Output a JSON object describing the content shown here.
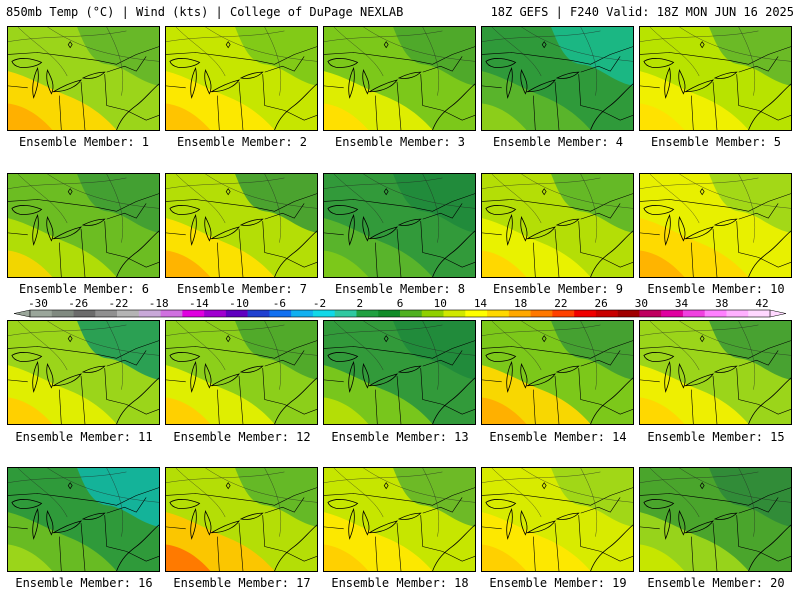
{
  "header": {
    "left": "850mb Temp (°C) | Wind (kts) | College of DuPage NEXLAB",
    "right": "18Z GEFS | F240 Valid: 18Z MON JUN 16 2025"
  },
  "members": [
    {
      "label": "Ensemble Member: 1",
      "base": "#9bd51a",
      "warm": "#ffd800",
      "hot": "#ffb000",
      "cool": "#63b52a"
    },
    {
      "label": "Ensemble Member: 2",
      "base": "#c6e600",
      "warm": "#ffe800",
      "hot": "#ffc400",
      "cool": "#7ac61a"
    },
    {
      "label": "Ensemble Member: 3",
      "base": "#7cc81a",
      "warm": "#e4ef00",
      "hot": "#ffe000",
      "cool": "#4aa52c"
    },
    {
      "label": "Ensemble Member: 4",
      "base": "#2f9a3a",
      "warm": "#5cb52a",
      "hot": "#8cce1a",
      "cool": "#1aba8c"
    },
    {
      "label": "Ensemble Member: 5",
      "base": "#b8e300",
      "warm": "#f2f000",
      "hot": "#ffe200",
      "cool": "#63b52a"
    },
    {
      "label": "Ensemble Member: 6",
      "base": "#6cbd22",
      "warm": "#b4de06",
      "hot": "#f2d600",
      "cool": "#3f9c34"
    },
    {
      "label": "Ensemble Member: 7",
      "base": "#b4de06",
      "warm": "#ffe000",
      "hot": "#ffb400",
      "cool": "#3f9c34"
    },
    {
      "label": "Ensemble Member: 8",
      "base": "#329a3a",
      "warm": "#5cb52a",
      "hot": "#7cc81a",
      "cool": "#1f8a3c"
    },
    {
      "label": "Ensemble Member: 9",
      "base": "#b4de06",
      "warm": "#ecf200",
      "hot": "#ffd800",
      "cool": "#5cb52a"
    },
    {
      "label": "Ensemble Member: 10",
      "base": "#e8f000",
      "warm": "#ffd800",
      "hot": "#ffb400",
      "cool": "#9bd51a"
    },
    {
      "label": "Ensemble Member: 11",
      "base": "#9bd51a",
      "warm": "#e4ef00",
      "hot": "#ffd000",
      "cool": "#1f9a5a"
    },
    {
      "label": "Ensemble Member: 12",
      "base": "#8ccf1a",
      "warm": "#e4ef00",
      "hot": "#ffd000",
      "cool": "#4aa52c"
    },
    {
      "label": "Ensemble Member: 13",
      "base": "#329a3a",
      "warm": "#7cc81a",
      "hot": "#b4de06",
      "cool": "#1f8a3c"
    },
    {
      "label": "Ensemble Member: 14",
      "base": "#7cc81a",
      "warm": "#ffd800",
      "hot": "#ffb000",
      "cool": "#3f9c34"
    },
    {
      "label": "Ensemble Member: 15",
      "base": "#9bd51a",
      "warm": "#f2f000",
      "hot": "#ffd800",
      "cool": "#3f9c34"
    },
    {
      "label": "Ensemble Member: 16",
      "base": "#2f9a3a",
      "warm": "#6cbd22",
      "hot": "#9bd51a",
      "cool": "#12b6a4"
    },
    {
      "label": "Ensemble Member: 17",
      "base": "#b4de06",
      "warm": "#ffc400",
      "hot": "#ff7a00",
      "cool": "#5cb52a"
    },
    {
      "label": "Ensemble Member: 18",
      "base": "#c6e600",
      "warm": "#ffe800",
      "hot": "#ffd000",
      "cool": "#63b52a"
    },
    {
      "label": "Ensemble Member: 19",
      "base": "#d8eb00",
      "warm": "#ffe800",
      "hot": "#ffd000",
      "cool": "#9bd51a"
    },
    {
      "label": "Ensemble Member: 20",
      "base": "#4aa52c",
      "warm": "#9bd51a",
      "hot": "#c6e600",
      "cool": "#2f8a3a"
    }
  ],
  "colorbar": {
    "ticks": [
      "-30",
      "-26",
      "-22",
      "-18",
      "-14",
      "-10",
      "-6",
      "-2",
      "2",
      "6",
      "10",
      "14",
      "18",
      "22",
      "26",
      "30",
      "34",
      "38",
      "42"
    ],
    "colors": [
      "#9aa69a",
      "#808a80",
      "#6c6c6c",
      "#909090",
      "#b4b4b4",
      "#c8a8d8",
      "#d070e0",
      "#e000e0",
      "#a000d0",
      "#6000c0",
      "#2040d0",
      "#1070f0",
      "#10b0f0",
      "#10d8e8",
      "#30c8a0",
      "#20a040",
      "#108c28",
      "#50b020",
      "#90d000",
      "#d0e800",
      "#ffff00",
      "#ffd800",
      "#ffa800",
      "#ff7800",
      "#ff4000",
      "#f00000",
      "#c80000",
      "#a00000",
      "#c00060",
      "#e000a0",
      "#f040e0",
      "#ff80ff",
      "#ffb0ff",
      "#ffd8ff"
    ]
  }
}
